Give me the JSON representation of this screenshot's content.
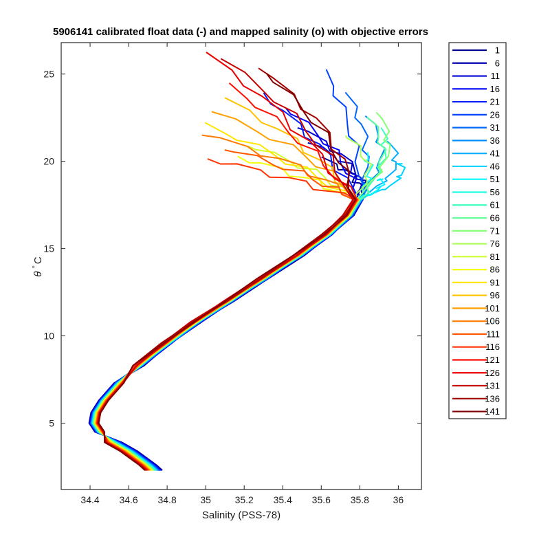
{
  "chart_data": {
    "type": "line",
    "title": "5906141 calibrated float data (-) and mapped salinity (o) with objective errors",
    "xlabel": "Salinity (PSS-78)",
    "ylabel_symbol": "θ",
    "ylabel_degree": "°",
    "ylabel_unit": "C",
    "xlim": [
      34.25,
      36.12
    ],
    "ylim": [
      1.2,
      26.8
    ],
    "x_ticks": [
      34.4,
      34.6,
      34.8,
      35,
      35.2,
      35.4,
      35.6,
      35.8,
      36
    ],
    "x_tick_labels": [
      "34.4",
      "34.6",
      "34.8",
      "35",
      "35.2",
      "35.4",
      "35.6",
      "35.8",
      "36"
    ],
    "y_ticks": [
      5,
      10,
      15,
      20,
      25
    ],
    "y_tick_labels": [
      "5",
      "10",
      "15",
      "20",
      "25"
    ],
    "grid": false,
    "legend_position": "outside-right",
    "colormap": "jet",
    "base_profile": [
      [
        34.73,
        2.3
      ],
      [
        34.7,
        2.6
      ],
      [
        34.65,
        3.0
      ],
      [
        34.6,
        3.4
      ],
      [
        34.52,
        3.9
      ],
      [
        34.45,
        4.5
      ],
      [
        34.42,
        5.0
      ],
      [
        34.43,
        5.6
      ],
      [
        34.47,
        6.3
      ],
      [
        34.55,
        7.3
      ],
      [
        34.65,
        8.3
      ],
      [
        34.8,
        9.6
      ],
      [
        34.95,
        10.8
      ],
      [
        35.12,
        12.0
      ],
      [
        35.3,
        13.3
      ],
      [
        35.48,
        14.6
      ],
      [
        35.63,
        15.8
      ],
      [
        35.74,
        16.9
      ],
      [
        35.79,
        17.8
      ],
      [
        35.8,
        18.6
      ],
      [
        35.77,
        19.4
      ],
      [
        35.72,
        20.2
      ],
      [
        35.66,
        21.0
      ],
      [
        35.58,
        21.8
      ],
      [
        35.48,
        22.6
      ],
      [
        35.38,
        23.4
      ],
      [
        35.28,
        24.2
      ]
    ],
    "series": [
      {
        "name": "1",
        "color": "#00008f",
        "surface_salinity": 35.62,
        "surface_temperature": 20.1
      },
      {
        "name": "6",
        "color": "#0000b3",
        "surface_salinity": 35.55,
        "surface_temperature": 21.0
      },
      {
        "name": "11",
        "color": "#0000d7",
        "surface_salinity": 35.48,
        "surface_temperature": 22.0
      },
      {
        "name": "16",
        "color": "#0000fb",
        "surface_salinity": 35.4,
        "surface_temperature": 23.2
      },
      {
        "name": "21",
        "color": "#001fff",
        "surface_salinity": 35.28,
        "surface_temperature": 24.0
      },
      {
        "name": "26",
        "color": "#0043ff",
        "surface_salinity": 35.62,
        "surface_temperature": 25.2
      },
      {
        "name": "31",
        "color": "#0067ff",
        "surface_salinity": 35.74,
        "surface_temperature": 23.8
      },
      {
        "name": "36",
        "color": "#008bff",
        "surface_salinity": 35.85,
        "surface_temperature": 22.5
      },
      {
        "name": "41",
        "color": "#00afff",
        "surface_salinity": 35.95,
        "surface_temperature": 21.2
      },
      {
        "name": "46",
        "color": "#00d3ff",
        "surface_salinity": 36.01,
        "surface_temperature": 20.0
      },
      {
        "name": "51",
        "color": "#00f7ff",
        "surface_salinity": 35.9,
        "surface_temperature": 19.1
      },
      {
        "name": "56",
        "color": "#1bffe3",
        "surface_salinity": 35.83,
        "surface_temperature": 20.5
      },
      {
        "name": "61",
        "color": "#3fffbf",
        "surface_salinity": 35.92,
        "surface_temperature": 21.8
      },
      {
        "name": "66",
        "color": "#63ff9b",
        "surface_salinity": 35.86,
        "surface_temperature": 22.4
      },
      {
        "name": "71",
        "color": "#87ff77",
        "surface_salinity": 35.9,
        "surface_temperature": 22.8
      },
      {
        "name": "76",
        "color": "#abff53",
        "surface_salinity": 35.72,
        "surface_temperature": 21.6
      },
      {
        "name": "81",
        "color": "#cfff2f",
        "surface_salinity": 35.2,
        "surface_temperature": 21.0
      },
      {
        "name": "86",
        "color": "#f3ff0b",
        "surface_salinity": 35.15,
        "surface_temperature": 20.3
      },
      {
        "name": "91",
        "color": "#ffe700",
        "surface_salinity": 35.0,
        "surface_temperature": 22.1
      },
      {
        "name": "96",
        "color": "#ffc300",
        "surface_salinity": 35.12,
        "surface_temperature": 23.5
      },
      {
        "name": "101",
        "color": "#ff9f00",
        "surface_salinity": 35.05,
        "surface_temperature": 22.8
      },
      {
        "name": "106",
        "color": "#ff7b00",
        "surface_salinity": 34.98,
        "surface_temperature": 21.6
      },
      {
        "name": "111",
        "color": "#ff5700",
        "surface_salinity": 35.08,
        "surface_temperature": 20.8
      },
      {
        "name": "116",
        "color": "#ff3300",
        "surface_salinity": 34.99,
        "surface_temperature": 20.2
      },
      {
        "name": "121",
        "color": "#ff0f00",
        "surface_salinity": 35.12,
        "surface_temperature": 24.4
      },
      {
        "name": "126",
        "color": "#eb0000",
        "surface_salinity": 35.02,
        "surface_temperature": 26.1
      },
      {
        "name": "131",
        "color": "#c70000",
        "surface_salinity": 35.1,
        "surface_temperature": 25.8
      },
      {
        "name": "136",
        "color": "#a30000",
        "surface_salinity": 35.28,
        "surface_temperature": 25.4
      },
      {
        "name": "141",
        "color": "#800000",
        "surface_salinity": 35.3,
        "surface_temperature": 25.2
      }
    ]
  }
}
